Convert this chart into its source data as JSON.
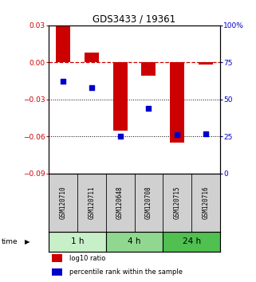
{
  "title": "GDS3433 / 19361",
  "samples": [
    "GSM120710",
    "GSM120711",
    "GSM120648",
    "GSM120708",
    "GSM120715",
    "GSM120716"
  ],
  "time_groups": [
    {
      "label": "1 h",
      "indices": [
        0,
        1
      ],
      "color": "#c8f0c8"
    },
    {
      "label": "4 h",
      "indices": [
        2,
        3
      ],
      "color": "#90d890"
    },
    {
      "label": "24 h",
      "indices": [
        4,
        5
      ],
      "color": "#50c050"
    }
  ],
  "log10_ratio": [
    0.029,
    0.008,
    -0.055,
    -0.011,
    -0.065,
    -0.002
  ],
  "percentile_rank": [
    62,
    58,
    25,
    44,
    26,
    27
  ],
  "bar_color": "#cc0000",
  "dot_color": "#0000cc",
  "ylim_left": [
    -0.09,
    0.03
  ],
  "ylim_right": [
    0,
    100
  ],
  "yticks_left": [
    0.03,
    0,
    -0.03,
    -0.06,
    -0.09
  ],
  "yticks_right": [
    100,
    75,
    50,
    25,
    0
  ],
  "dotted_lines": [
    -0.03,
    -0.06
  ],
  "bar_width": 0.5,
  "dot_size": 18,
  "legend_red_label": "log10 ratio",
  "legend_blue_label": "percentile rank within the sample",
  "background_color": "#ffffff",
  "label_area_color": "#d0d0d0"
}
